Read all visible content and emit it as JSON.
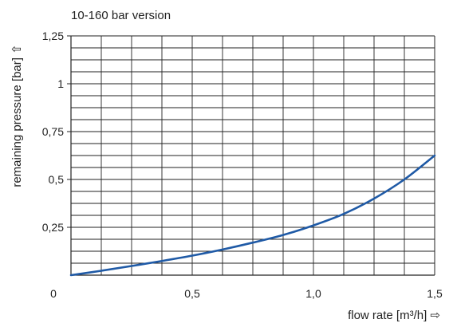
{
  "chart_data": {
    "type": "line",
    "title": "10-160 bar version",
    "xlabel": "flow rate [m³/h] ⇨",
    "ylabel": "remaining pressure [bar] ⇧",
    "xlim": [
      0,
      1.5
    ],
    "ylim": [
      0,
      1.25
    ],
    "x_ticks": [
      {
        "value": 0,
        "label": "0"
      },
      {
        "value": 0.5,
        "label": "0,5"
      },
      {
        "value": 1.0,
        "label": "1,0"
      },
      {
        "value": 1.5,
        "label": "1,5"
      }
    ],
    "y_ticks": [
      {
        "value": 0.25,
        "label": "0,25"
      },
      {
        "value": 0.5,
        "label": "0,5"
      },
      {
        "value": 0.75,
        "label": "0,75"
      },
      {
        "value": 1.0,
        "label": "1"
      },
      {
        "value": 1.25,
        "label": "1,25"
      }
    ],
    "grid": true,
    "grid_x_step": 0.125,
    "grid_y_step": 0.0625,
    "series": [
      {
        "color": "#1f5aa6",
        "x": [
          0,
          0.125,
          0.25,
          0.375,
          0.5,
          0.625,
          0.75,
          0.875,
          1.0,
          1.125,
          1.25,
          1.375,
          1.5
        ],
        "y": [
          0,
          0.023,
          0.048,
          0.074,
          0.102,
          0.134,
          0.17,
          0.21,
          0.26,
          0.32,
          0.4,
          0.5,
          0.625
        ]
      }
    ]
  }
}
